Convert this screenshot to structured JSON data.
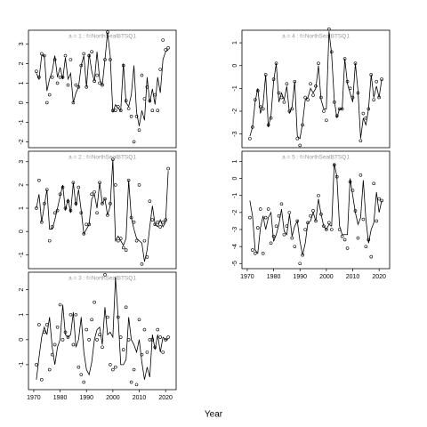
{
  "xlabel": "Year",
  "chart_data": [
    {
      "type": "line",
      "title": "a = 1  :  f=NorthSealBTSQ1",
      "xlim": [
        1968,
        2024
      ],
      "ylim": [
        -2.3,
        3.7
      ],
      "yticks": [
        -2,
        -1,
        0,
        1,
        2,
        3
      ],
      "x": [
        1971,
        1972,
        1973,
        1974,
        1975,
        1976,
        1977,
        1978,
        1979,
        1980,
        1981,
        1982,
        1983,
        1984,
        1985,
        1986,
        1987,
        1988,
        1989,
        1990,
        1991,
        1992,
        1993,
        1994,
        1995,
        1996,
        1997,
        1998,
        1999,
        2000,
        2001,
        2002,
        2003,
        2004,
        2005,
        2006,
        2007,
        2008,
        2009,
        2010,
        2011,
        2012,
        2013,
        2014,
        2015,
        2016,
        2017,
        2018,
        2019,
        2020,
        2021
      ],
      "series": [
        {
          "style": "line",
          "color": "#000000",
          "values": [
            1.5,
            1.2,
            2.4,
            2.4,
            0.6,
            1.2,
            1.6,
            2.4,
            1.3,
            1.8,
            1.2,
            2.3,
            1.2,
            1.5,
            0.0,
            0.5,
            0.8,
            1.9,
            2.4,
            0.8,
            2.5,
            1.6,
            1.1,
            2.6,
            1.2,
            0.9,
            2.2,
            3.6,
            2.4,
            -0.5,
            -0.1,
            -0.3,
            -0.4,
            2.0,
            0.0,
            -0.2,
            0.4,
            1.9,
            -0.5,
            -1.2,
            -0.4,
            -0.9,
            1.3,
            0.0,
            0.7,
            -0.1,
            1.3,
            0.5,
            2.2,
            2.6,
            2.7
          ]
        },
        {
          "style": "points",
          "color": "#000000",
          "values": [
            1.6,
            1.3,
            2.5,
            2.4,
            0.0,
            0.4,
            1.3,
            2.2,
            1.0,
            1.3,
            1.3,
            2.4,
            0.9,
            2.2,
            0.0,
            0.9,
            0.8,
            1.9,
            2.5,
            0.8,
            2.4,
            2.6,
            1.1,
            1.4,
            1.0,
            0.9,
            2.2,
            3.6,
            2.2,
            -0.4,
            -0.4,
            -0.2,
            -0.4,
            1.9,
            0.1,
            -0.3,
            -0.7,
            -2.0,
            -0.7,
            -1.4,
            1.4,
            0.2,
            0.8,
            0.1,
            -0.4,
            0.4,
            -0.4,
            1.7,
            3.2,
            2.7,
            2.8
          ]
        }
      ]
    },
    {
      "type": "line",
      "title": "a = 2  :  f=NorthSealBTSQ1",
      "xlim": [
        1968,
        2024
      ],
      "ylim": [
        -1.6,
        3.45
      ],
      "yticks": [
        -1,
        0,
        1,
        2,
        3
      ],
      "x": [
        1971,
        1972,
        1973,
        1974,
        1975,
        1976,
        1977,
        1978,
        1979,
        1980,
        1981,
        1982,
        1983,
        1984,
        1985,
        1986,
        1987,
        1988,
        1989,
        1990,
        1991,
        1992,
        1993,
        1994,
        1995,
        1996,
        1997,
        1998,
        1999,
        2000,
        2001,
        2002,
        2003,
        2004,
        2005,
        2006,
        2007,
        2008,
        2009,
        2010,
        2011,
        2012,
        2013,
        2014,
        2015,
        2016,
        2017,
        2018,
        2019,
        2020,
        2021
      ],
      "series": [
        {
          "style": "line",
          "color": "#000000",
          "values": [
            1.0,
            1.6,
            0.4,
            1.1,
            1.8,
            0.1,
            0.1,
            0.5,
            1.0,
            1.5,
            2.0,
            0.9,
            1.4,
            0.8,
            2.1,
            1.1,
            1.8,
            0.9,
            -0.1,
            0.1,
            0.3,
            1.4,
            1.6,
            1.0,
            2.1,
            1.2,
            1.4,
            0.7,
            1.1,
            3.1,
            -0.4,
            -0.2,
            -0.4,
            -0.6,
            -0.3,
            2.2,
            0.6,
            0.1,
            -0.3,
            -0.4,
            -0.5,
            -1.3,
            -0.8,
            0.2,
            1.1,
            0.3,
            0.2,
            0.5,
            0.2,
            0.4,
            2.6
          ]
        },
        {
          "style": "points",
          "color": "#000000",
          "values": [
            1.0,
            2.2,
            0.4,
            1.2,
            1.8,
            -0.4,
            0.2,
            0.8,
            0.9,
            1.6,
            1.9,
            1.0,
            1.3,
            0.9,
            2.1,
            1.2,
            1.9,
            0.8,
            -0.1,
            0.3,
            0.3,
            1.6,
            1.7,
            0.8,
            2.1,
            1.2,
            1.4,
            0.7,
            1.2,
            3.1,
            2.0,
            -0.4,
            -0.3,
            -0.7,
            -0.8,
            2.2,
            0.6,
            0.4,
            -0.4,
            2.0,
            -1.4,
            -0.4,
            -1.1,
            1.3,
            0.5,
            0.3,
            0.4,
            0.2,
            0.4,
            0.5,
            2.7
          ]
        }
      ]
    },
    {
      "type": "line",
      "title": "a = 3  :  f=NorthSealBTSQ1",
      "xlim": [
        1968,
        2024
      ],
      "ylim": [
        -2.0,
        2.7
      ],
      "yticks": [
        -1,
        0,
        1,
        2
      ],
      "xticks": [
        1970,
        1980,
        1990,
        2000,
        2010,
        2020
      ],
      "x": [
        1971,
        1972,
        1973,
        1974,
        1975,
        1976,
        1977,
        1978,
        1979,
        1980,
        1981,
        1982,
        1983,
        1984,
        1985,
        1986,
        1987,
        1988,
        1989,
        1990,
        1991,
        1992,
        1993,
        1994,
        1995,
        1996,
        1997,
        1998,
        1999,
        2000,
        2001,
        2002,
        2003,
        2004,
        2005,
        2006,
        2007,
        2008,
        2009,
        2010,
        2011,
        2012,
        2013,
        2014,
        2015,
        2016,
        2017,
        2018,
        2019,
        2020,
        2021
      ],
      "series": [
        {
          "style": "line",
          "color": "#000000",
          "values": [
            -1.6,
            -0.7,
            0.1,
            0.5,
            0.2,
            0.9,
            -0.3,
            -1.0,
            -0.3,
            0.0,
            1.4,
            0.2,
            0.1,
            0.2,
            1.1,
            -0.3,
            0.0,
            0.9,
            -0.5,
            -1.2,
            -1.4,
            -0.9,
            0.0,
            0.4,
            0.5,
            -0.2,
            1.3,
            0.2,
            0.3,
            0.1,
            2.5,
            0.9,
            -1.0,
            -1.0,
            -0.8,
            0.9,
            0.0,
            -0.2,
            -0.5,
            0.0,
            -0.9,
            -1.6,
            -1.1,
            -1.5,
            0.2,
            -0.4,
            0.2,
            -0.5,
            0.1,
            0.0,
            0.0
          ]
        },
        {
          "style": "points",
          "color": "#000000",
          "values": [
            -1.0,
            0.6,
            -1.6,
            0.3,
            0.6,
            -1.2,
            -0.6,
            -0.2,
            0.5,
            1.4,
            0.0,
            0.3,
            0.1,
            1.0,
            -0.2,
            1.0,
            -1.1,
            -1.4,
            -1.7,
            0.4,
            0.0,
            0.8,
            1.5,
            0.0,
            0.2,
            -0.3,
            2.6,
            0.9,
            -1.0,
            -1.2,
            -1.1,
            0.9,
            0.1,
            -0.4,
            1.3,
            0.0,
            -1.7,
            -1.2,
            -1.8,
            0.8,
            -0.6,
            0.4,
            -0.5,
            0.0,
            0.0,
            -0.3,
            0.4,
            0.1,
            -0.5,
            0.0,
            0.1
          ]
        }
      ]
    },
    {
      "type": "line",
      "title": "a = 4  :  f=NorthSealBTSQ1",
      "xlim": [
        1968,
        2024
      ],
      "ylim": [
        -3.6,
        1.55
      ],
      "yticks": [
        -3,
        -2,
        -1,
        0,
        1
      ],
      "x": [
        1971,
        1972,
        1973,
        1974,
        1975,
        1976,
        1977,
        1978,
        1979,
        1980,
        1981,
        1982,
        1983,
        1984,
        1985,
        1986,
        1987,
        1988,
        1989,
        1990,
        1991,
        1992,
        1993,
        1994,
        1995,
        1996,
        1997,
        1998,
        1999,
        2000,
        2001,
        2002,
        2003,
        2004,
        2005,
        2006,
        2007,
        2008,
        2009,
        2010,
        2011,
        2012,
        2013,
        2014,
        2015,
        2016,
        2017,
        2018,
        2019,
        2020,
        2021
      ],
      "series": [
        {
          "style": "line",
          "color": "#000000",
          "values": [
            -3.1,
            -2.7,
            -1.6,
            -1.0,
            -2.1,
            -1.7,
            -0.4,
            -2.7,
            -2.2,
            -0.7,
            0.1,
            -1.6,
            -1.2,
            -1.5,
            -0.9,
            -2.1,
            -1.8,
            -0.7,
            -3.1,
            -3.2,
            -2.5,
            -1.5,
            -1.4,
            -1.0,
            -1.2,
            -1.0,
            0.0,
            -1.5,
            -1.9,
            -1.9,
            1.5,
            0.5,
            -1.5,
            -2.3,
            -1.9,
            -1.9,
            0.3,
            -0.8,
            -1.2,
            -1.6,
            0.1,
            -1.1,
            -3.2,
            -2.3,
            -2.6,
            -1.9,
            -0.4,
            -1.4,
            -0.9,
            -1.4,
            -0.6
          ]
        },
        {
          "style": "points",
          "color": "#000000",
          "values": [
            -3.2,
            -2.7,
            -1.5,
            -1.1,
            -1.8,
            -1.9,
            -0.4,
            -2.6,
            -2.3,
            -0.6,
            0.1,
            -1.2,
            -1.4,
            -1.6,
            -0.8,
            -2.0,
            -1.9,
            -0.7,
            -3.2,
            -3.5,
            -2.6,
            -1.4,
            -1.5,
            -0.8,
            -1.3,
            -0.9,
            0.1,
            -1.4,
            -2.0,
            -2.4,
            1.6,
            0.6,
            -1.6,
            -2.2,
            -1.9,
            -1.9,
            0.3,
            -0.7,
            -1.0,
            -1.4,
            0.1,
            -1.2,
            -3.3,
            -2.1,
            -2.3,
            -1.9,
            -0.4,
            -1.5,
            -0.7,
            -1.4,
            -0.6
          ]
        }
      ]
    },
    {
      "type": "line",
      "title": "a = 5  :  f=NorthSealBTSQ1",
      "xlim": [
        1968,
        2024
      ],
      "ylim": [
        -5.3,
        1.6
      ],
      "yticks": [
        -5,
        -4,
        -3,
        -2,
        -1,
        0,
        1
      ],
      "xticks": [
        1970,
        1980,
        1990,
        2000,
        2010,
        2020
      ],
      "x": [
        1971,
        1972,
        1973,
        1974,
        1975,
        1976,
        1977,
        1978,
        1979,
        1980,
        1981,
        1982,
        1983,
        1984,
        1985,
        1986,
        1987,
        1988,
        1989,
        1990,
        1991,
        1992,
        1993,
        1994,
        1995,
        1996,
        1997,
        1998,
        1999,
        2000,
        2001,
        2002,
        2003,
        2004,
        2005,
        2006,
        2007,
        2008,
        2009,
        2010,
        2011,
        2012,
        2013,
        2014,
        2015,
        2016,
        2017,
        2018,
        2019,
        2020,
        2021
      ],
      "series": [
        {
          "style": "line",
          "color": "#000000",
          "values": [
            -1.3,
            -2.2,
            -4.2,
            -4.4,
            -2.9,
            -2.2,
            -3.0,
            -2.3,
            -2.0,
            -3.7,
            -3.3,
            -2.7,
            -1.8,
            -3.1,
            -3.3,
            -2.1,
            -3.4,
            -2.8,
            -2.5,
            -3.7,
            -4.5,
            -3.8,
            -2.6,
            -2.5,
            -2.0,
            -2.5,
            -1.2,
            -2.1,
            -2.8,
            -3.0,
            -2.7,
            -2.8,
            0.9,
            0.1,
            -2.8,
            -3.3,
            -3.3,
            -3.3,
            0.0,
            -1.0,
            -2.0,
            -2.7,
            -2.3,
            -0.1,
            -2.4,
            -3.8,
            -3.0,
            -2.6,
            -0.8,
            -2.0,
            -1.3
          ]
        },
        {
          "style": "points",
          "color": "#000000",
          "values": [
            -2.3,
            -4.2,
            -4.4,
            -2.9,
            -1.8,
            -4.4,
            -2.3,
            -1.8,
            -3.8,
            -3.4,
            -2.8,
            -2.2,
            -1.5,
            -3.3,
            -2.8,
            -2.0,
            -3.5,
            -4.0,
            -2.5,
            -5.0,
            -4.5,
            -3.0,
            -2.6,
            -2.2,
            -1.9,
            -2.5,
            -1.0,
            -2.1,
            -2.8,
            -3.0,
            -2.6,
            -3.0,
            0.8,
            0.1,
            -3.0,
            -3.4,
            -3.6,
            -4.1,
            -0.2,
            -0.7,
            -1.9,
            -3.5,
            0.2,
            -2.4,
            -4.0,
            -3.6,
            -4.6,
            -0.3,
            -2.5,
            -1.2,
            -1.3
          ]
        }
      ]
    }
  ]
}
